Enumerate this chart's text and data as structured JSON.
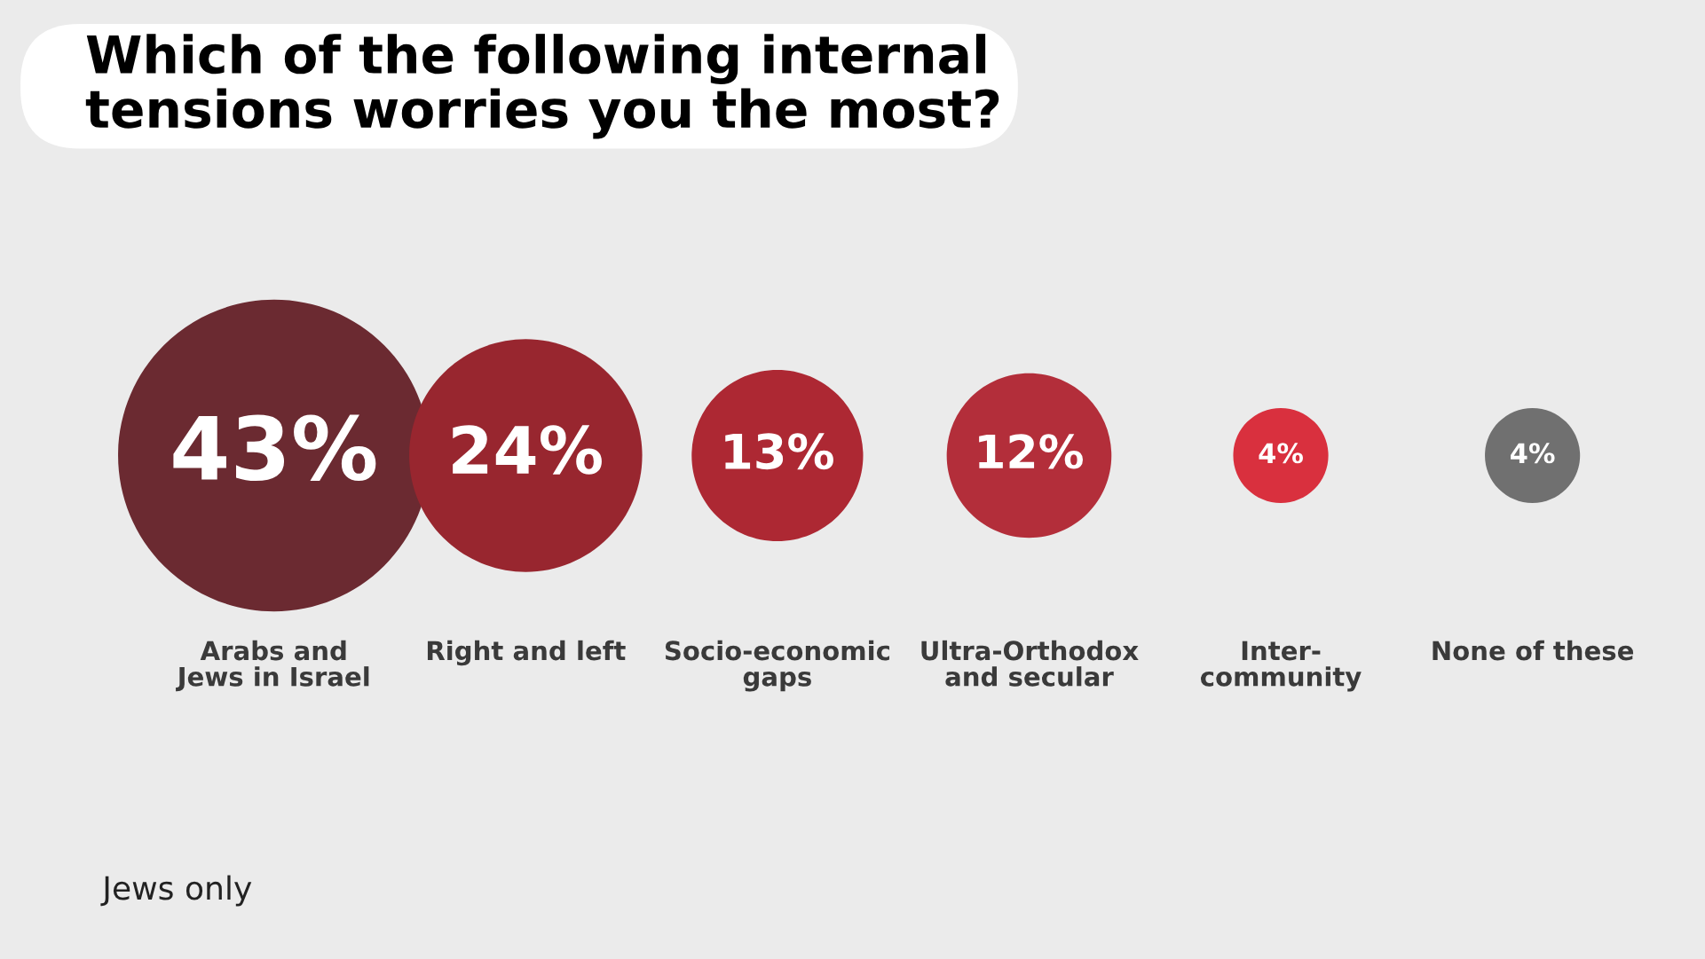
{
  "chart_data": {
    "type": "other",
    "title": "Which of the following internal\ntensions worries you the most?",
    "categories": [
      "Arabs and\nJews in Israel",
      "Right and left",
      "Socio-economic\ngaps",
      "Ultra-Orthodox\nand secular",
      "Inter-\ncommunity",
      "None of these"
    ],
    "values": [
      43,
      24,
      13,
      12,
      4,
      4
    ],
    "value_labels": [
      "43%",
      "24%",
      "13%",
      "12%",
      "4%",
      "4%"
    ],
    "colors": [
      "#6b2a31",
      "#98262f",
      "#ad2833",
      "#b32e3a",
      "#d9303e",
      "#707070"
    ],
    "annotations": [
      "Jews only"
    ]
  }
}
